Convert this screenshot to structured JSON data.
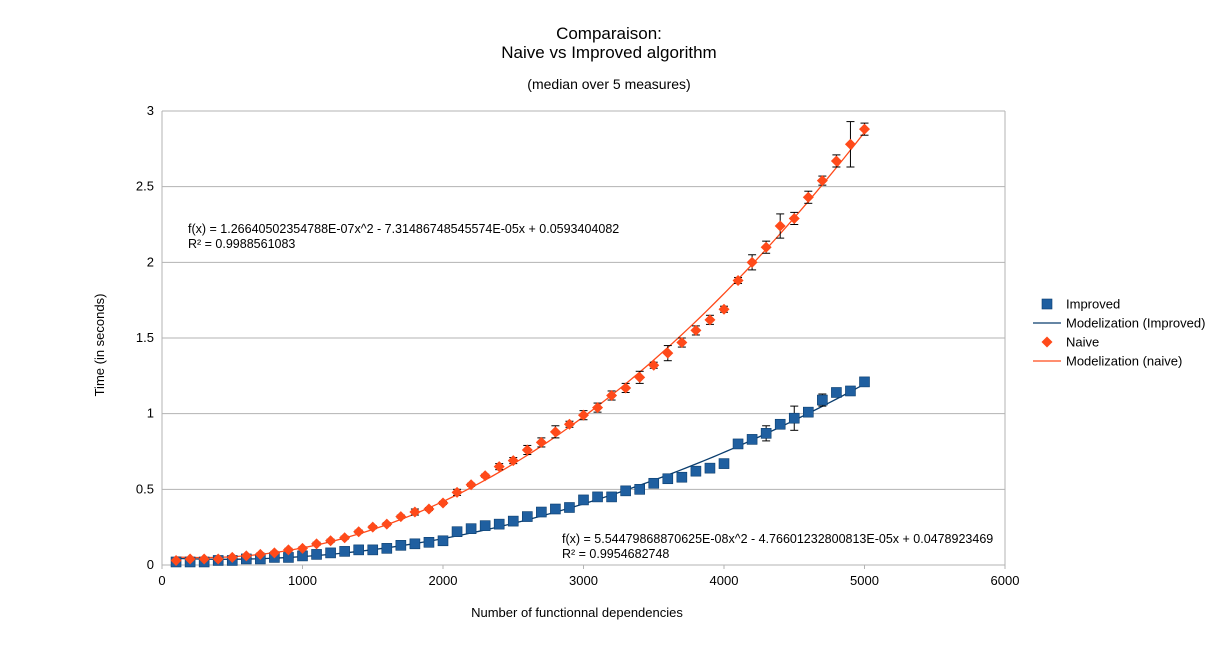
{
  "chart_data": {
    "type": "scatter",
    "title_line1": "Comparaison:",
    "title_line2": "Naive vs Improved algorithm",
    "subtitle": "(median over 5 measures)",
    "xlabel": "Number of functionnal dependencies",
    "ylabel": "Time (in seconds)",
    "xlim": [
      0,
      6000
    ],
    "ylim": [
      0,
      3
    ],
    "x_ticks": [
      "0",
      "1000",
      "2000",
      "3000",
      "4000",
      "5000",
      "6000"
    ],
    "y_ticks": [
      "0",
      "0.5",
      "1",
      "1.5",
      "2",
      "2.5",
      "3"
    ],
    "grid": "horizontal",
    "legend_position": "right",
    "x": [
      100,
      200,
      300,
      400,
      500,
      600,
      700,
      800,
      900,
      1000,
      1100,
      1200,
      1300,
      1400,
      1500,
      1600,
      1700,
      1800,
      1900,
      2000,
      2100,
      2200,
      2300,
      2400,
      2500,
      2600,
      2700,
      2800,
      2900,
      3000,
      3100,
      3200,
      3300,
      3400,
      3500,
      3600,
      3700,
      3800,
      3900,
      4000,
      4100,
      4200,
      4300,
      4400,
      4500,
      4600,
      4700,
      4800,
      4900,
      5000
    ],
    "series": [
      {
        "name": "Improved",
        "marker": "square",
        "color": "#1f5fa0",
        "values": [
          0.02,
          0.02,
          0.02,
          0.03,
          0.03,
          0.04,
          0.04,
          0.05,
          0.05,
          0.06,
          0.07,
          0.08,
          0.09,
          0.1,
          0.1,
          0.11,
          0.13,
          0.14,
          0.15,
          0.16,
          0.22,
          0.24,
          0.26,
          0.27,
          0.29,
          0.32,
          0.35,
          0.37,
          0.38,
          0.43,
          0.45,
          0.45,
          0.49,
          0.5,
          0.54,
          0.57,
          0.58,
          0.62,
          0.64,
          0.67,
          0.8,
          0.83,
          0.87,
          0.93,
          0.97,
          1.01,
          1.09,
          1.14,
          1.15,
          1.21
        ],
        "err": [
          0.01,
          0.01,
          0.01,
          0.01,
          0.01,
          0.01,
          0.01,
          0.01,
          0.01,
          0.01,
          0.01,
          0.01,
          0.01,
          0.01,
          0.01,
          0.01,
          0.01,
          0.01,
          0.01,
          0.01,
          0.01,
          0.01,
          0.01,
          0.01,
          0.01,
          0.01,
          0.01,
          0.01,
          0.01,
          0.01,
          0.01,
          0.01,
          0.01,
          0.01,
          0.01,
          0.01,
          0.02,
          0.01,
          0.01,
          0.02,
          0.02,
          0.02,
          0.05,
          0.02,
          0.08,
          0.02,
          0.04,
          0.02,
          0.02,
          0.02
        ]
      },
      {
        "name": "Naive",
        "marker": "diamond",
        "color": "#ff4a1a",
        "values": [
          0.03,
          0.04,
          0.04,
          0.04,
          0.05,
          0.06,
          0.07,
          0.08,
          0.1,
          0.11,
          0.14,
          0.16,
          0.18,
          0.22,
          0.25,
          0.27,
          0.32,
          0.35,
          0.37,
          0.41,
          0.48,
          0.53,
          0.59,
          0.65,
          0.69,
          0.76,
          0.81,
          0.88,
          0.93,
          0.99,
          1.04,
          1.12,
          1.17,
          1.24,
          1.32,
          1.4,
          1.47,
          1.55,
          1.62,
          1.69,
          1.88,
          2.0,
          2.1,
          2.24,
          2.29,
          2.43,
          2.54,
          2.67,
          2.78,
          2.88
        ],
        "err": [
          0.01,
          0.01,
          0.01,
          0.01,
          0.01,
          0.01,
          0.01,
          0.01,
          0.01,
          0.01,
          0.01,
          0.01,
          0.01,
          0.01,
          0.01,
          0.01,
          0.01,
          0.02,
          0.01,
          0.01,
          0.02,
          0.01,
          0.01,
          0.02,
          0.02,
          0.03,
          0.03,
          0.04,
          0.02,
          0.03,
          0.03,
          0.03,
          0.03,
          0.04,
          0.02,
          0.05,
          0.03,
          0.03,
          0.03,
          0.02,
          0.02,
          0.05,
          0.04,
          0.08,
          0.04,
          0.04,
          0.03,
          0.04,
          0.15,
          0.04
        ]
      }
    ],
    "trendlines": [
      {
        "name": "Modelization (Improved)",
        "color": "#0a3d6e",
        "coefficients": [
          5.54479868870625e-08,
          -4.76601232800813e-05,
          0.0478923469
        ],
        "equation": "f(x) = 5.54479868870625E-08x^2 - 4.76601232800813E-05x + 0.0478923469",
        "r2": "R² = 0.9954682748"
      },
      {
        "name": "Modelization (naive)",
        "color": "#ff4a1a",
        "coefficients": [
          1.26640502354788e-07,
          -7.31486748545574e-05,
          0.0593404082
        ],
        "equation": "f(x) = 1.26640502354788E-07x^2 - 7.31486748545574E-05x + 0.0593404082",
        "r2": "R² = 0.9988561083"
      }
    ],
    "legend": [
      {
        "label": "Improved",
        "kind": "square",
        "color": "#1f5fa0"
      },
      {
        "label": "Modelization (Improved)",
        "kind": "line",
        "color": "#0a3d6e"
      },
      {
        "label": "Naive",
        "kind": "diamond",
        "color": "#ff4a1a"
      },
      {
        "label": "Modelization (naive)",
        "kind": "line",
        "color": "#ff4a1a"
      }
    ]
  }
}
